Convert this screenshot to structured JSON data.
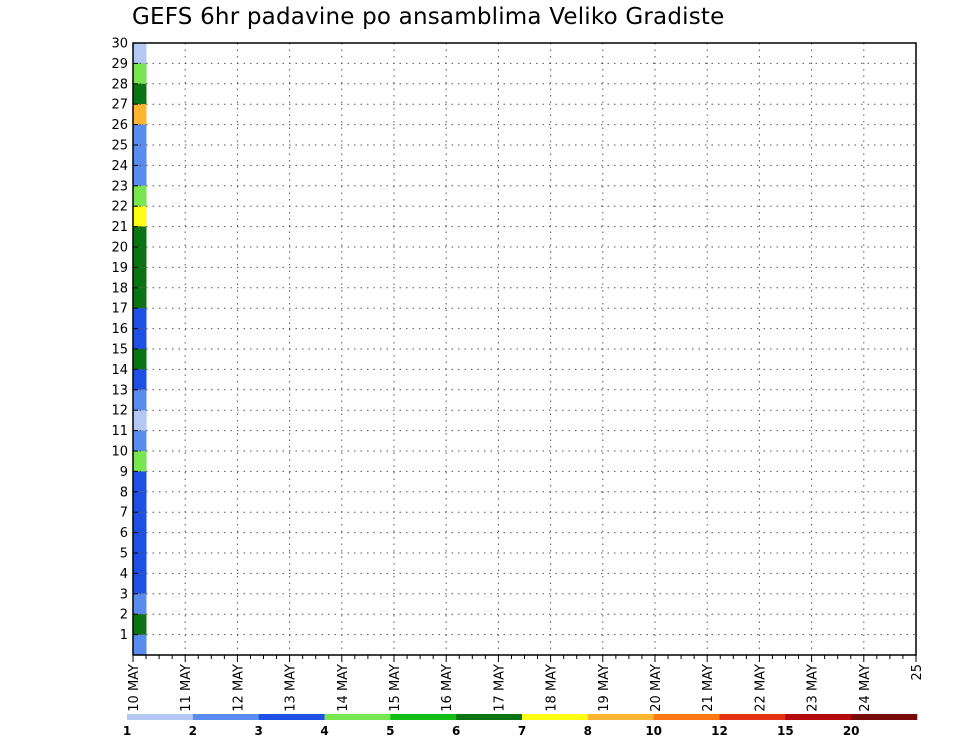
{
  "chart_data": {
    "type": "heatmap",
    "title": "GEFS 6hr padavine po ansamblima Veliko Gradiste",
    "x_ticks": [
      "10 MAY",
      "11 MAY",
      "12 MAY",
      "13 MAY",
      "14 MAY",
      "15 MAY",
      "16 MAY",
      "17 MAY",
      "18 MAY",
      "19 MAY",
      "20 MAY",
      "21 MAY",
      "22 MAY",
      "23 MAY",
      "24 MAY",
      "25"
    ],
    "y_ticks": [
      "1",
      "2",
      "3",
      "4",
      "5",
      "6",
      "7",
      "8",
      "9",
      "10",
      "11",
      "12",
      "13",
      "14",
      "15",
      "16",
      "17",
      "18",
      "19",
      "20",
      "21",
      "22",
      "23",
      "24",
      "25",
      "26",
      "27",
      "28",
      "29",
      "30"
    ],
    "xlim": [
      0,
      60
    ],
    "ylim": [
      0,
      30
    ],
    "grid": true,
    "colorbar": {
      "labels": [
        "1",
        "2",
        "3",
        "4",
        "5",
        "6",
        "7",
        "8",
        "10",
        "12",
        "15",
        "20"
      ],
      "colors": [
        "#b4c8f5",
        "#5a8cf0",
        "#1e50e6",
        "#78e650",
        "#14be14",
        "#0a7314",
        "#ffff14",
        "#ffb432",
        "#ff7814",
        "#e63214",
        "#b40a0a",
        "#780a0a"
      ]
    },
    "levels": [
      1,
      2,
      3,
      4,
      5,
      6,
      7,
      8,
      10,
      12,
      15,
      20
    ],
    "cells": [
      [
        0,
        29,
        0
      ],
      [
        0,
        28,
        2
      ],
      [
        0,
        28,
        3
      ],
      [
        0,
        27,
        6
      ],
      [
        0,
        27,
        5
      ],
      [
        0,
        26,
        6
      ],
      [
        0,
        26,
        7
      ],
      [
        0,
        25,
        6
      ],
      [
        0,
        25,
        3
      ],
      [
        0,
        25,
        1
      ],
      [
        0,
        24,
        6
      ],
      [
        0,
        24,
        2
      ],
      [
        0,
        24,
        1
      ],
      [
        0,
        23,
        5
      ],
      [
        0,
        23,
        2
      ],
      [
        0,
        23,
        1
      ],
      [
        0,
        22,
        6
      ],
      [
        0,
        22,
        8
      ],
      [
        0,
        22,
        3
      ],
      [
        0,
        21,
        4
      ],
      [
        0,
        21,
        1
      ],
      [
        0,
        21,
        6
      ],
      [
        0,
        20,
        2
      ],
      [
        0,
        20,
        4
      ],
      [
        0,
        20,
        5
      ],
      [
        0,
        19,
        5
      ],
      [
        0,
        19,
        7
      ],
      [
        0,
        19,
        5
      ],
      [
        0,
        18,
        5
      ],
      [
        0,
        18,
        9
      ],
      [
        0,
        18,
        5
      ],
      [
        0,
        17,
        5
      ],
      [
        0,
        17,
        7
      ],
      [
        0,
        17,
        5
      ],
      [
        0,
        16,
        0
      ],
      [
        0,
        16,
        5
      ],
      [
        0,
        16,
        2
      ],
      [
        0,
        15,
        5
      ],
      [
        0,
        15,
        7
      ],
      [
        0,
        15,
        2
      ],
      [
        0,
        14,
        5
      ],
      [
        0,
        14,
        5
      ],
      [
        0,
        14,
        5
      ],
      [
        0,
        13,
        0
      ],
      [
        0,
        13,
        5
      ],
      [
        0,
        13,
        2
      ],
      [
        0,
        12,
        5
      ],
      [
        0,
        12,
        6
      ],
      [
        0,
        12,
        1
      ],
      [
        0,
        11,
        5
      ],
      [
        0,
        11,
        2
      ],
      [
        0,
        11,
        0
      ],
      [
        0,
        10,
        6
      ],
      [
        0,
        10,
        3
      ],
      [
        0,
        10,
        1
      ],
      [
        0,
        9,
        6
      ],
      [
        0,
        9,
        2
      ],
      [
        0,
        9,
        3
      ],
      [
        0,
        8,
        6
      ],
      [
        0,
        8,
        6
      ],
      [
        0,
        8,
        2
      ],
      [
        0,
        7,
        6
      ],
      [
        0,
        7,
        4
      ],
      [
        0,
        7,
        2
      ],
      [
        0,
        6,
        5
      ],
      [
        0,
        6,
        3
      ],
      [
        0,
        6,
        2
      ],
      [
        0,
        5,
        5
      ],
      [
        0,
        5,
        3
      ],
      [
        0,
        5,
        2
      ],
      [
        0,
        4,
        4
      ],
      [
        0,
        4,
        2
      ],
      [
        0,
        4,
        2
      ],
      [
        0,
        3,
        7
      ],
      [
        0,
        3,
        4
      ],
      [
        0,
        3,
        2
      ],
      [
        0,
        2,
        0
      ],
      [
        0,
        2,
        6
      ],
      [
        0,
        2,
        1
      ],
      [
        0,
        1,
        0
      ],
      [
        0,
        1,
        7
      ],
      [
        0,
        1,
        5
      ],
      [
        0,
        0,
        0
      ],
      [
        0,
        0,
        5
      ],
      [
        0,
        0,
        1
      ]
    ]
  }
}
